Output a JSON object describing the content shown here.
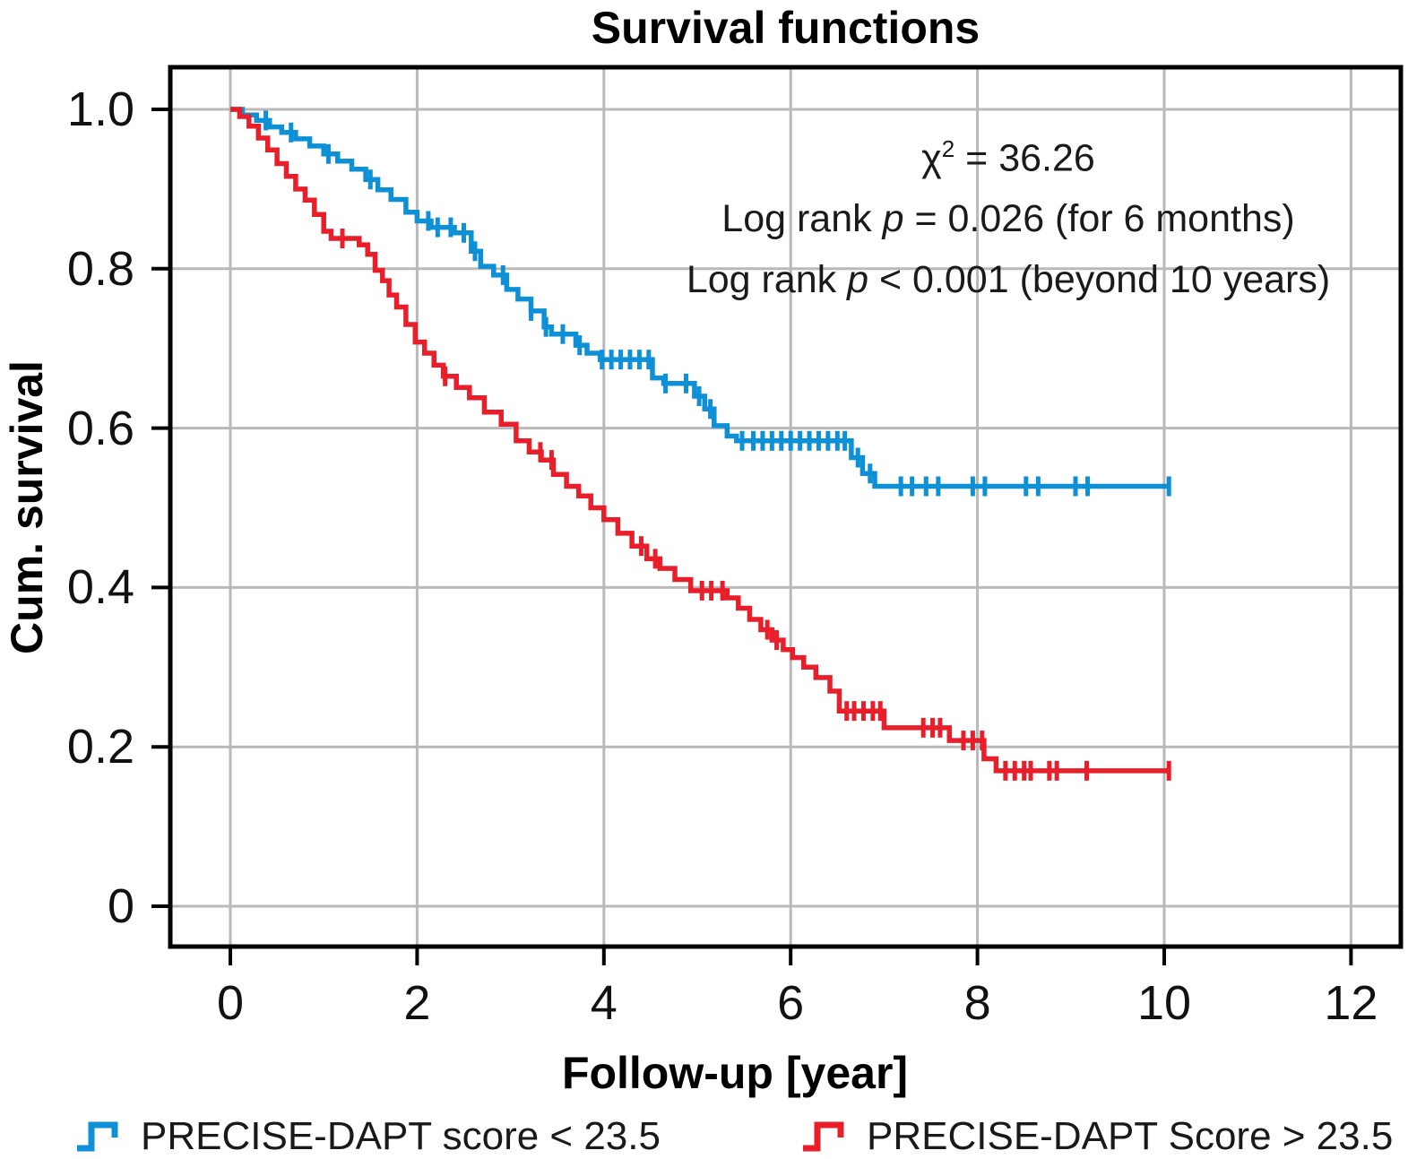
{
  "title": "Survival functions",
  "annotation": {
    "line1": {
      "chi": "χ",
      "exp": "2",
      "rest": " = 36.26"
    },
    "line2": {
      "pre": "Log rank ",
      "p": "p",
      "post": " = 0.026 (for 6 months)"
    },
    "line3": {
      "pre": "Log rank ",
      "p": "p",
      "post": " < 0.001 (beyond 10 years)"
    }
  },
  "axes": {
    "x": {
      "label": "Follow-up [year]",
      "tick_labels": [
        "0",
        "2",
        "4",
        "6",
        "8",
        "10",
        "12"
      ],
      "tick_values": [
        0,
        2,
        4,
        6,
        8,
        10,
        12
      ]
    },
    "y": {
      "label": "Cum. survival",
      "tick_labels": [
        "1.0",
        "0.8",
        "0.6",
        "0.4",
        "0.2",
        "0"
      ],
      "tick_values": [
        1.0,
        0.8,
        0.6,
        0.4,
        0.2,
        0
      ]
    }
  },
  "legend": {
    "items": [
      {
        "label": "PRECISE-DAPT score < 23.5",
        "color": "#0d90d6"
      },
      {
        "label": "PRECISE-DAPT Score > 23.5",
        "color": "#e81e2a"
      }
    ]
  },
  "colors": {
    "blue_series": "#0d90d6",
    "red_series": "#e81e2a",
    "grid": "#b9b9b9",
    "spine": "#000000",
    "text": "#1a1a1a"
  },
  "chart_data": {
    "type": "line",
    "subtype": "kaplan-meier-step",
    "title": "Survival functions",
    "xlabel": "Follow-up [year]",
    "ylabel": "Cum. survival",
    "xlim": [
      -0.65,
      12.56
    ],
    "ylim": [
      -0.05,
      1.053
    ],
    "x_ticks": [
      0,
      2,
      4,
      6,
      8,
      10,
      12
    ],
    "y_ticks": [
      0,
      0.2,
      0.4,
      0.6,
      0.8,
      1.0
    ],
    "grid": true,
    "legend_position": "bottom",
    "stats": {
      "chi_square": 36.26,
      "log_rank_6_months": "p = 0.026",
      "log_rank_beyond_10_years": "p < 0.001"
    },
    "series": [
      {
        "name": "PRECISE-DAPT score < 23.5",
        "color": "#0d90d6",
        "steps": [
          [
            0,
            1.0
          ],
          [
            0.13,
            0.993
          ],
          [
            0.28,
            0.986
          ],
          [
            0.42,
            0.978
          ],
          [
            0.55,
            0.971
          ],
          [
            0.7,
            0.963
          ],
          [
            0.85,
            0.954
          ],
          [
            1.0,
            0.944
          ],
          [
            1.15,
            0.935
          ],
          [
            1.3,
            0.925
          ],
          [
            1.45,
            0.912
          ],
          [
            1.58,
            0.899
          ],
          [
            1.72,
            0.887
          ],
          [
            1.88,
            0.871
          ],
          [
            2.0,
            0.86
          ],
          [
            2.15,
            0.852
          ],
          [
            2.4,
            0.845
          ],
          [
            2.58,
            0.822
          ],
          [
            2.68,
            0.803
          ],
          [
            2.82,
            0.792
          ],
          [
            2.96,
            0.774
          ],
          [
            3.08,
            0.762
          ],
          [
            3.22,
            0.747
          ],
          [
            3.36,
            0.727
          ],
          [
            3.44,
            0.718
          ],
          [
            3.7,
            0.704
          ],
          [
            3.82,
            0.694
          ],
          [
            3.96,
            0.686
          ],
          [
            4.52,
            0.663
          ],
          [
            4.64,
            0.656
          ],
          [
            4.97,
            0.64
          ],
          [
            5.08,
            0.624
          ],
          [
            5.18,
            0.603
          ],
          [
            5.32,
            0.59
          ],
          [
            5.42,
            0.584
          ],
          [
            6.65,
            0.563
          ],
          [
            6.77,
            0.543
          ],
          [
            6.9,
            0.527
          ],
          [
            10.06,
            0.527
          ]
        ],
        "censor_times": [
          0.38,
          0.65,
          1.05,
          1.5,
          2.12,
          2.22,
          2.36,
          2.5,
          2.62,
          2.92,
          3.22,
          3.38,
          3.56,
          3.74,
          3.98,
          4.08,
          4.18,
          4.28,
          4.38,
          4.48,
          4.66,
          4.88,
          5.02,
          5.14,
          5.48,
          5.6,
          5.7,
          5.8,
          5.9,
          6.0,
          6.1,
          6.2,
          6.3,
          6.4,
          6.5,
          6.58,
          6.72,
          6.85,
          7.18,
          7.3,
          7.45,
          7.58,
          7.95,
          8.08,
          8.52,
          8.65,
          9.05,
          9.18,
          10.05
        ]
      },
      {
        "name": "PRECISE-DAPT Score > 23.5",
        "color": "#e81e2a",
        "steps": [
          [
            0,
            1.0
          ],
          [
            0.1,
            0.991
          ],
          [
            0.2,
            0.979
          ],
          [
            0.3,
            0.964
          ],
          [
            0.4,
            0.949
          ],
          [
            0.5,
            0.932
          ],
          [
            0.6,
            0.916
          ],
          [
            0.7,
            0.9
          ],
          [
            0.8,
            0.886
          ],
          [
            0.9,
            0.868
          ],
          [
            1.0,
            0.847
          ],
          [
            1.08,
            0.838
          ],
          [
            1.38,
            0.83
          ],
          [
            1.47,
            0.818
          ],
          [
            1.55,
            0.798
          ],
          [
            1.63,
            0.785
          ],
          [
            1.7,
            0.767
          ],
          [
            1.78,
            0.752
          ],
          [
            1.88,
            0.73
          ],
          [
            1.98,
            0.708
          ],
          [
            2.08,
            0.694
          ],
          [
            2.18,
            0.679
          ],
          [
            2.28,
            0.665
          ],
          [
            2.42,
            0.651
          ],
          [
            2.56,
            0.638
          ],
          [
            2.72,
            0.62
          ],
          [
            2.9,
            0.605
          ],
          [
            3.06,
            0.584
          ],
          [
            3.2,
            0.57
          ],
          [
            3.33,
            0.56
          ],
          [
            3.46,
            0.542
          ],
          [
            3.6,
            0.527
          ],
          [
            3.73,
            0.515
          ],
          [
            3.86,
            0.5
          ],
          [
            4.0,
            0.485
          ],
          [
            4.15,
            0.468
          ],
          [
            4.3,
            0.452
          ],
          [
            4.46,
            0.436
          ],
          [
            4.6,
            0.424
          ],
          [
            4.76,
            0.41
          ],
          [
            4.93,
            0.396
          ],
          [
            5.32,
            0.387
          ],
          [
            5.44,
            0.374
          ],
          [
            5.56,
            0.36
          ],
          [
            5.68,
            0.347
          ],
          [
            5.8,
            0.334
          ],
          [
            5.92,
            0.322
          ],
          [
            6.02,
            0.312
          ],
          [
            6.14,
            0.3
          ],
          [
            6.27,
            0.287
          ],
          [
            6.42,
            0.27
          ],
          [
            6.52,
            0.245
          ],
          [
            7.0,
            0.224
          ],
          [
            7.7,
            0.208
          ],
          [
            8.07,
            0.185
          ],
          [
            8.2,
            0.17
          ],
          [
            10.07,
            0.17
          ]
        ],
        "censor_times": [
          1.2,
          2.3,
          3.32,
          3.44,
          4.4,
          4.55,
          5.05,
          5.15,
          5.27,
          5.75,
          5.85,
          6.6,
          6.68,
          6.78,
          6.88,
          6.96,
          7.42,
          7.52,
          7.6,
          7.85,
          7.95,
          8.05,
          8.3,
          8.4,
          8.5,
          8.57,
          8.77,
          8.85,
          9.17,
          10.05
        ]
      }
    ]
  }
}
